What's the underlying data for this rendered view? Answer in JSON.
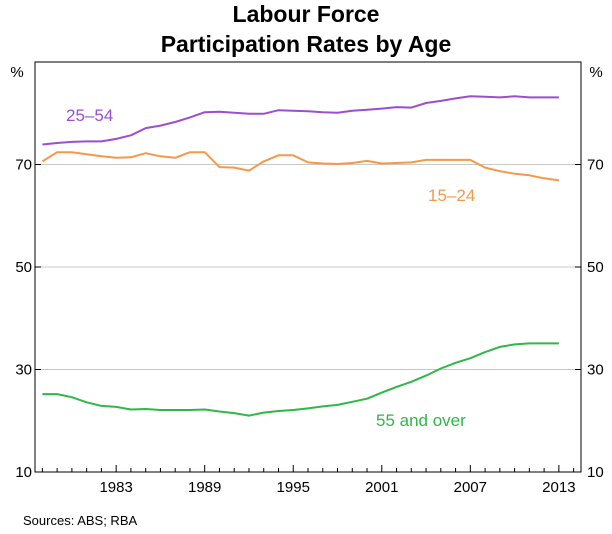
{
  "chart_data": {
    "type": "line",
    "title": [
      "Labour Force",
      "Participation Rates by Age"
    ],
    "y_unit_left": "%",
    "y_unit_right": "%",
    "ylim": [
      10,
      90
    ],
    "yticks": [
      10,
      30,
      50,
      70
    ],
    "xlim": [
      1977.5,
      2014.5
    ],
    "xticks": [
      1983,
      1989,
      1995,
      2001,
      2007,
      2013
    ],
    "grid": true,
    "source": "Sources:  ABS; RBA",
    "series": [
      {
        "name": "25–54",
        "color": "#9B4FD0",
        "x": [
          1978,
          1979,
          1980,
          1981,
          1982,
          1983,
          1984,
          1985,
          1986,
          1987,
          1988,
          1989,
          1990,
          1991,
          1992,
          1993,
          1994,
          1995,
          1996,
          1997,
          1998,
          1999,
          2000,
          2001,
          2002,
          2003,
          2004,
          2005,
          2006,
          2007,
          2008,
          2009,
          2010,
          2011,
          2012,
          2013
        ],
        "values": [
          73.9,
          74.2,
          74.4,
          74.5,
          74.5,
          75.0,
          75.7,
          77.1,
          77.6,
          78.3,
          79.2,
          80.2,
          80.3,
          80.1,
          79.9,
          79.9,
          80.6,
          80.5,
          80.4,
          80.2,
          80.1,
          80.5,
          80.7,
          80.9,
          81.2,
          81.1,
          82.0,
          82.4,
          82.9,
          83.3,
          83.2,
          83.1,
          83.3,
          83.1,
          83.1,
          83.1
        ]
      },
      {
        "name": "15–24",
        "color": "#F5984A",
        "x": [
          1978,
          1979,
          1980,
          1981,
          1982,
          1983,
          1984,
          1985,
          1986,
          1987,
          1988,
          1989,
          1990,
          1991,
          1992,
          1993,
          1994,
          1995,
          1996,
          1997,
          1998,
          1999,
          2000,
          2001,
          2002,
          2003,
          2004,
          2005,
          2006,
          2007,
          2008,
          2009,
          2010,
          2011,
          2012,
          2013
        ],
        "values": [
          70.6,
          72.4,
          72.4,
          72.0,
          71.6,
          71.3,
          71.4,
          72.2,
          71.6,
          71.3,
          72.4,
          72.4,
          69.5,
          69.4,
          68.8,
          70.6,
          71.8,
          71.8,
          70.4,
          70.2,
          70.1,
          70.3,
          70.7,
          70.2,
          70.3,
          70.4,
          70.9,
          70.9,
          70.9,
          70.9,
          69.4,
          68.7,
          68.2,
          67.9,
          67.3,
          66.9
        ]
      },
      {
        "name": "55 and over",
        "color": "#2EB846",
        "x": [
          1978,
          1979,
          1980,
          1981,
          1982,
          1983,
          1984,
          1985,
          1986,
          1987,
          1988,
          1989,
          1990,
          1991,
          1992,
          1993,
          1994,
          1995,
          1996,
          1997,
          1998,
          1999,
          2000,
          2001,
          2002,
          2003,
          2004,
          2005,
          2006,
          2007,
          2008,
          2009,
          2010,
          2011,
          2012,
          2013
        ],
        "values": [
          25.2,
          25.2,
          24.6,
          23.6,
          22.9,
          22.7,
          22.2,
          22.3,
          22.1,
          22.1,
          22.1,
          22.2,
          21.8,
          21.5,
          21.0,
          21.6,
          21.9,
          22.1,
          22.4,
          22.8,
          23.1,
          23.7,
          24.3,
          25.5,
          26.6,
          27.6,
          28.8,
          30.2,
          31.3,
          32.2,
          33.4,
          34.4,
          34.9,
          35.1,
          35.1,
          35.1
        ]
      }
    ],
    "labels": {
      "s0": "25–54",
      "s1": "15–24",
      "s2": "55 and over"
    }
  }
}
